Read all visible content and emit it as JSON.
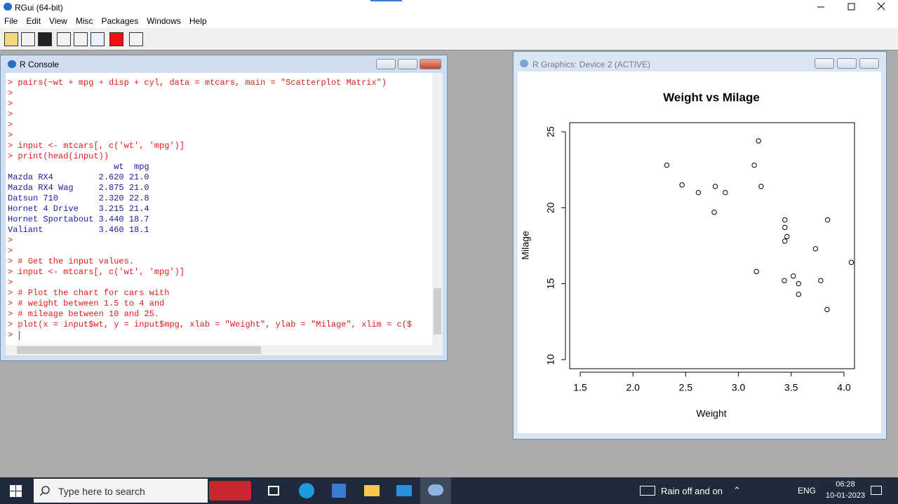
{
  "window": {
    "title": "RGui (64-bit)"
  },
  "menu": [
    "File",
    "Edit",
    "View",
    "Misc",
    "Packages",
    "Windows",
    "Help"
  ],
  "console": {
    "title": "R Console",
    "lines": [
      "> pairs(~wt + mpg + disp + cyl, data = mtcars, main = \"Scatterplot Matrix\")",
      ">",
      ">",
      ">",
      ">",
      ">",
      "> input <- mtcars[, c('wt', 'mpg')]",
      "> print(head(input))",
      "                     wt  mpg",
      "Mazda RX4         2.620 21.0",
      "Mazda RX4 Wag     2.875 21.0",
      "Datsun 710        2.320 22.8",
      "Hornet 4 Drive    3.215 21.4",
      "Hornet Sportabout 3.440 18.7",
      "Valiant           3.460 18.1",
      ">",
      ">",
      "> # Get the input values.",
      "> input <- mtcars[, c('wt', 'mpg')]",
      ">",
      "> # Plot the chart for cars with",
      "> # weight between 1.5 to 4 and",
      "> # mileage between 10 and 25.",
      "> plot(x = input$wt, y = input$mpg, xlab = \"Weight\", ylab = \"Milage\", xlim = c($",
      "> "
    ]
  },
  "graphics": {
    "title": "R Graphics: Device 2 (ACTIVE)"
  },
  "chart_data": {
    "type": "scatter",
    "title": "Weight vs Milage",
    "x_label": "Weight",
    "y_label": "Milage",
    "color": "#000000",
    "x": [
      2.32,
      2.465,
      2.62,
      2.78,
      2.77,
      2.875,
      3.15,
      3.19,
      3.215,
      3.17,
      3.44,
      3.44,
      3.46,
      3.44,
      3.435,
      3.52,
      3.57,
      3.57,
      3.73,
      3.78,
      3.845,
      3.84,
      4.07
    ],
    "y": [
      22.8,
      21.5,
      21.0,
      21.4,
      19.7,
      21.0,
      22.8,
      24.4,
      21.4,
      15.8,
      19.2,
      18.7,
      18.1,
      17.8,
      15.2,
      15.5,
      15.0,
      14.3,
      17.3,
      15.2,
      19.2,
      13.3,
      16.4
    ],
    "xlim": [
      1.4,
      4.1
    ],
    "ylim": [
      9.4,
      25.6
    ],
    "xticks": [
      1.5,
      {
        "value": 2,
        "label": "2.0"
      },
      2.5,
      {
        "value": 3,
        "label": "3.0"
      },
      3.5,
      {
        "value": 4,
        "label": "4.0"
      }
    ],
    "yticks": [
      10,
      15,
      20,
      25
    ]
  },
  "taskbar": {
    "search": "Type here to search",
    "weather": "Rain off and on",
    "language": "ENG",
    "time": "06:28",
    "date": "10-01-2023"
  }
}
